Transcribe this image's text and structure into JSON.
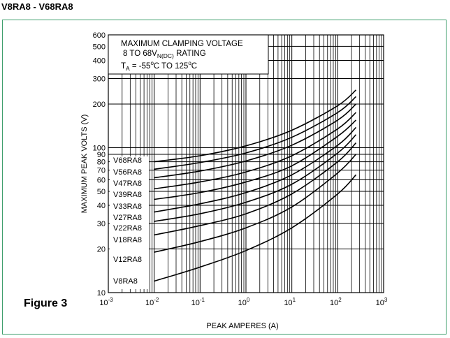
{
  "header": {
    "title": "V8RA8 - V68RA8"
  },
  "figure_label": "Figure 3",
  "chart_data": {
    "type": "line",
    "xlabel": "PEAK AMPERES (A)",
    "ylabel": "MAXIMUM PEAK VOLTS (V)",
    "x_scale": "log",
    "y_scale": "log",
    "xlim": [
      0.001,
      1000
    ],
    "ylim": [
      10,
      600
    ],
    "grid": true,
    "x_ticks": [
      {
        "value": 0.001,
        "base": "10",
        "exp": "-3"
      },
      {
        "value": 0.01,
        "base": "10",
        "exp": "-2"
      },
      {
        "value": 0.1,
        "base": "10",
        "exp": "-1"
      },
      {
        "value": 1,
        "base": "10",
        "exp": "0"
      },
      {
        "value": 10,
        "base": "10",
        "exp": "1"
      },
      {
        "value": 100,
        "base": "10",
        "exp": "2"
      },
      {
        "value": 1000,
        "base": "10",
        "exp": "3"
      }
    ],
    "y_ticks": [
      10,
      20,
      30,
      40,
      50,
      60,
      70,
      80,
      90,
      100,
      200,
      300,
      400,
      500,
      600
    ],
    "title_box": {
      "line1": "MAXIMUM CLAMPING VOLTAGE",
      "line2_main": "8 TO 68V",
      "line2_sub": "N(DC)",
      "line2_tail": " RATING",
      "line3_a": "T",
      "line3_sub": "A",
      "line3_b": " = -55",
      "line3_sup1": "o",
      "line3_c": "C TO 125",
      "line3_sup2": "o",
      "line3_d": "C"
    },
    "series": [
      {
        "name": "V68RA8",
        "x": [
          0.01,
          0.1,
          1,
          10,
          100,
          250
        ],
        "y": [
          80,
          88,
          103,
          132,
          195,
          250
        ]
      },
      {
        "name": "V56RA8",
        "x": [
          0.01,
          0.1,
          1,
          10,
          100,
          250
        ],
        "y": [
          71,
          79,
          92,
          118,
          175,
          225
        ]
      },
      {
        "name": "V47RA8",
        "x": [
          0.01,
          0.1,
          1,
          10,
          100,
          250
        ],
        "y": [
          62,
          69,
          81,
          104,
          155,
          200
        ]
      },
      {
        "name": "V39RA8",
        "x": [
          0.01,
          0.1,
          1,
          10,
          100,
          250
        ],
        "y": [
          52,
          58,
          68,
          88,
          135,
          175
        ]
      },
      {
        "name": "V33RA8",
        "x": [
          0.01,
          0.1,
          1,
          10,
          100,
          250
        ],
        "y": [
          44,
          49,
          58,
          75,
          120,
          155
        ]
      },
      {
        "name": "V27RA8",
        "x": [
          0.01,
          0.1,
          1,
          10,
          100,
          250
        ],
        "y": [
          36,
          41,
          49,
          65,
          104,
          138
        ]
      },
      {
        "name": "V22RA8",
        "x": [
          0.01,
          0.1,
          1,
          10,
          100,
          250
        ],
        "y": [
          31,
          35,
          42,
          56,
          92,
          123
        ]
      },
      {
        "name": "V18RA8",
        "x": [
          0.01,
          0.1,
          1,
          10,
          100,
          250
        ],
        "y": [
          25,
          29,
          35,
          48,
          80,
          108
        ]
      },
      {
        "name": "V12RA8",
        "x": [
          0.01,
          0.1,
          1,
          10,
          100,
          250
        ],
        "y": [
          19,
          22.5,
          28,
          39,
          67,
          90
        ]
      },
      {
        "name": "V8RA8",
        "x": [
          0.01,
          0.1,
          1,
          10,
          100,
          250
        ],
        "y": [
          12,
          15,
          19.5,
          28,
          48,
          65
        ]
      }
    ]
  }
}
